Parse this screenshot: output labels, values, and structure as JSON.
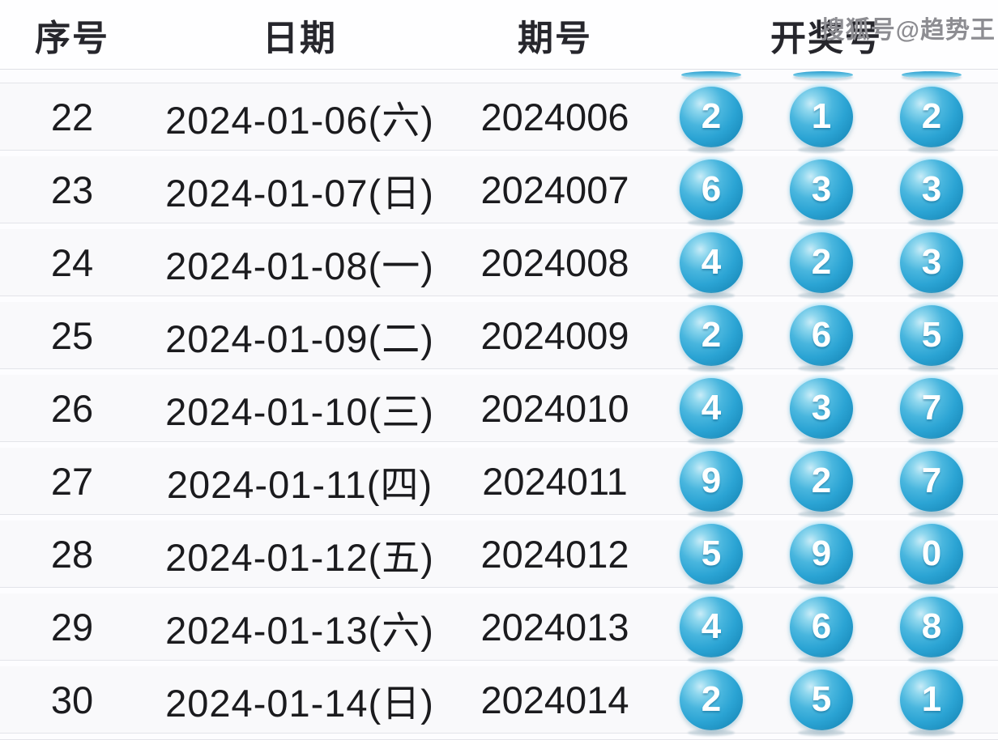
{
  "watermark": "搜狐号@趋势王",
  "chart_data": {
    "type": "table",
    "columns": [
      "序号",
      "日期",
      "期号",
      "开奖号"
    ],
    "rows": [
      {
        "seq": "22",
        "date": "2024-01-06(六)",
        "period": "2024006",
        "balls": [
          "2",
          "1",
          "2"
        ]
      },
      {
        "seq": "23",
        "date": "2024-01-07(日)",
        "period": "2024007",
        "balls": [
          "6",
          "3",
          "3"
        ]
      },
      {
        "seq": "24",
        "date": "2024-01-08(一)",
        "period": "2024008",
        "balls": [
          "4",
          "2",
          "3"
        ]
      },
      {
        "seq": "25",
        "date": "2024-01-09(二)",
        "period": "2024009",
        "balls": [
          "2",
          "6",
          "5"
        ]
      },
      {
        "seq": "26",
        "date": "2024-01-10(三)",
        "period": "2024010",
        "balls": [
          "4",
          "3",
          "7"
        ]
      },
      {
        "seq": "27",
        "date": "2024-01-11(四)",
        "period": "2024011",
        "balls": [
          "9",
          "2",
          "7"
        ]
      },
      {
        "seq": "28",
        "date": "2024-01-12(五)",
        "period": "2024012",
        "balls": [
          "5",
          "9",
          "0"
        ]
      },
      {
        "seq": "29",
        "date": "2024-01-13(六)",
        "period": "2024013",
        "balls": [
          "4",
          "6",
          "8"
        ]
      },
      {
        "seq": "30",
        "date": "2024-01-14(日)",
        "period": "2024014",
        "balls": [
          "2",
          "5",
          "1"
        ]
      }
    ],
    "partial_previous_row_balls_visible": 3
  },
  "colors": {
    "ball_main": "#2ba4d4",
    "ball_highlight": "#c9ecf8",
    "row_background": "#f9f9fb",
    "grid_border": "#e3e4e9",
    "header_text": "#26262c",
    "cell_text": "#1b1b1e",
    "watermark_text": "#8d8d92"
  }
}
